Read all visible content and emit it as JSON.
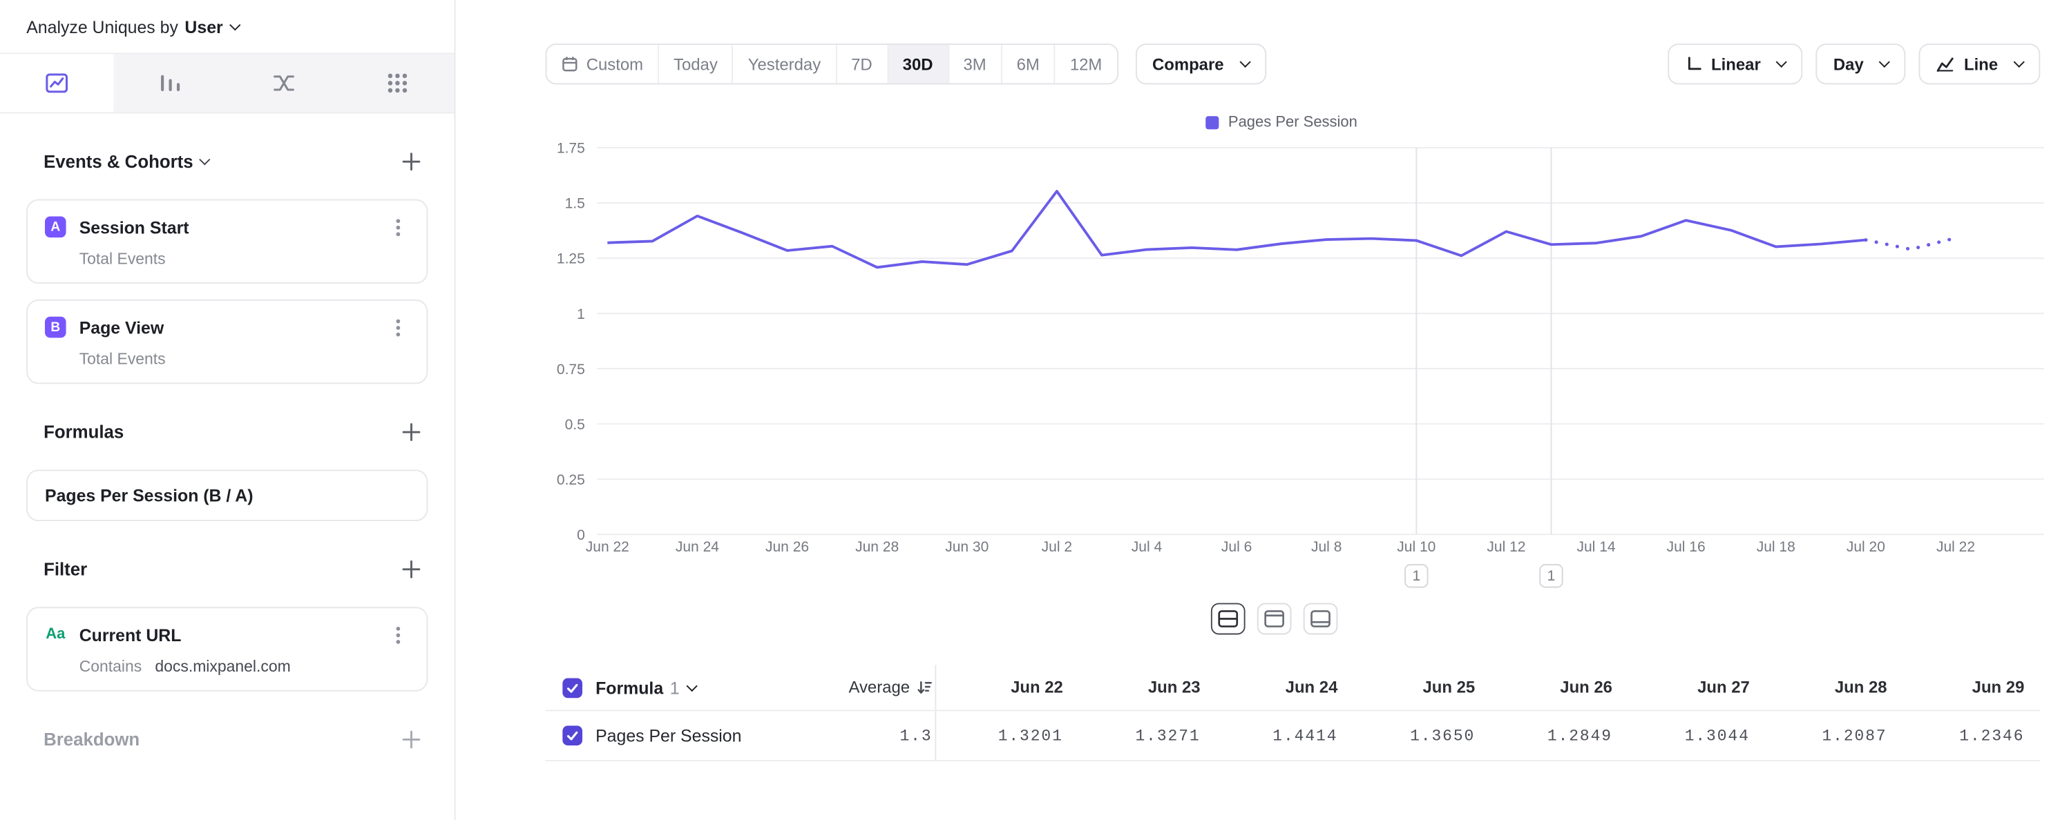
{
  "sidebar": {
    "analyze_label": "Analyze Uniques by",
    "analyze_value": "User",
    "tabs": [
      {
        "icon": "insights-chart-icon",
        "selected": true
      },
      {
        "icon": "funnels-bars-icon",
        "selected": false
      },
      {
        "icon": "flows-icon",
        "selected": false
      },
      {
        "icon": "retention-grid-icon",
        "selected": false
      }
    ],
    "events": {
      "title": "Events & Cohorts",
      "items": [
        {
          "badge": "A",
          "name": "Session Start",
          "subtitle": "Total Events"
        },
        {
          "badge": "B",
          "name": "Page View",
          "subtitle": "Total Events"
        }
      ]
    },
    "formulas": {
      "title": "Formulas",
      "items": [
        {
          "name": "Pages Per Session (B / A)"
        }
      ]
    },
    "filter": {
      "title": "Filter",
      "items": [
        {
          "type": "Aa",
          "name": "Current URL",
          "operator": "Contains",
          "value": "docs.mixpanel.com"
        }
      ]
    },
    "breakdown": {
      "title": "Breakdown"
    }
  },
  "toolbar": {
    "date_ranges": [
      "Custom",
      "Today",
      "Yesterday",
      "7D",
      "30D",
      "3M",
      "6M",
      "12M"
    ],
    "selected_range": "30D",
    "compare_label": "Compare",
    "scale_label": "Linear",
    "interval_label": "Day",
    "chart_type_label": "Line"
  },
  "chart_data": {
    "type": "line",
    "series_name": "Pages Per Session",
    "x": [
      "Jun 22",
      "Jun 23",
      "Jun 24",
      "Jun 25",
      "Jun 26",
      "Jun 27",
      "Jun 28",
      "Jun 29",
      "Jun 30",
      "Jul 1",
      "Jul 2",
      "Jul 3",
      "Jul 4",
      "Jul 5",
      "Jul 6",
      "Jul 7",
      "Jul 8",
      "Jul 9",
      "Jul 10",
      "Jul 11",
      "Jul 12",
      "Jul 13",
      "Jul 14",
      "Jul 15",
      "Jul 16",
      "Jul 17",
      "Jul 18",
      "Jul 19",
      "Jul 20",
      "Jul 21",
      "Jul 22"
    ],
    "values": [
      1.3201,
      1.3271,
      1.4414,
      1.365,
      1.2849,
      1.3044,
      1.2087,
      1.2346,
      1.2216,
      1.2832,
      1.5534,
      1.2641,
      1.2893,
      1.2976,
      1.2885,
      1.3158,
      1.3346,
      1.339,
      1.3302,
      1.2614,
      1.3708,
      1.312,
      1.3186,
      1.3494,
      1.4215,
      1.3766,
      1.3021,
      1.3145,
      1.3328,
      1.2904,
      1.3417
    ],
    "ylim": [
      0,
      1.75
    ],
    "ytick": 0.25,
    "x_tick_every": 2,
    "color": "#6A5CE8",
    "dotted_tail_points": 2,
    "grid": "horizontal",
    "legend_position": "top-center",
    "annotations": [
      {
        "x": "Jul 10",
        "label": "1"
      },
      {
        "x": "Jul 13",
        "label": "1"
      }
    ]
  },
  "layout_toggles": {
    "options": [
      "split-view",
      "table-top-view",
      "table-bottom-view"
    ],
    "selected_index": 0
  },
  "table": {
    "formula_label": "Formula",
    "formula_number": "1",
    "average_label": "Average",
    "columns": [
      "Jun 22",
      "Jun 23",
      "Jun 24",
      "Jun 25",
      "Jun 26",
      "Jun 27",
      "Jun 28",
      "Jun 29"
    ],
    "row": {
      "name": "Pages Per Session",
      "average": "1.3",
      "values": [
        "1.3201",
        "1.3271",
        "1.4414",
        "1.3650",
        "1.2849",
        "1.3044",
        "1.2087",
        "1.2346"
      ]
    }
  }
}
